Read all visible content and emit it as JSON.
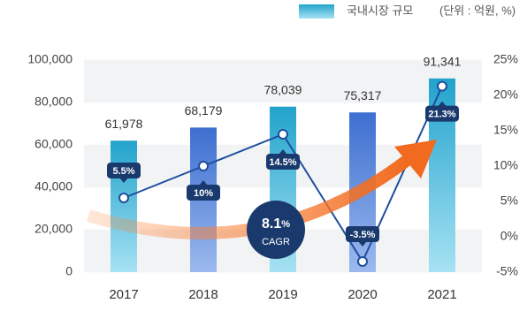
{
  "chart_data": {
    "type": "bar_line",
    "legend_name": "국내시장 규모",
    "unit_note": "(단위 : 억원, %)",
    "categories": [
      "2017",
      "2018",
      "2019",
      "2020",
      "2021"
    ],
    "series": [
      {
        "name": "국내시장 규모",
        "type": "bar",
        "colors": [
          "#22a3cc",
          "#3d6fd0",
          "#22a3cc",
          "#3d6fd0",
          "#22a3cc"
        ],
        "values": [
          61978,
          68179,
          78039,
          75317,
          91341
        ],
        "value_labels": [
          "61,978",
          "68,179",
          "78,039",
          "75,317",
          "91,341"
        ]
      },
      {
        "type": "line",
        "axis": "y2",
        "color": "#1f4e9e",
        "values": [
          5.5,
          10,
          14.5,
          -3.5,
          21.3
        ],
        "value_labels": [
          "5.5%",
          "10%",
          "14.5%",
          "-3.5%",
          "21.3%"
        ]
      }
    ],
    "ylim": [
      0,
      100000
    ],
    "yticks": [
      0,
      {
        "value": 20000,
        "label": "20,000"
      },
      {
        "value": 40000,
        "label": "40,000"
      },
      {
        "value": 60000,
        "label": "60,000"
      },
      {
        "value": 80000,
        "label": "80,000"
      },
      {
        "value": 100000,
        "label": "100,000"
      }
    ],
    "y2lim": [
      -5,
      25
    ],
    "y2ticks": [
      {
        "value": -5,
        "label": "-5%"
      },
      {
        "value": 0,
        "label": "0%"
      },
      {
        "value": 5,
        "label": "5%"
      },
      {
        "value": 10,
        "label": "10%"
      },
      {
        "value": 15,
        "label": "15%"
      },
      {
        "value": 20,
        "label": "20%"
      },
      {
        "value": 25,
        "label": "25%"
      }
    ],
    "cagr_value": "8.1",
    "cagr_unit": "%",
    "cagr_label": "CAGR"
  }
}
